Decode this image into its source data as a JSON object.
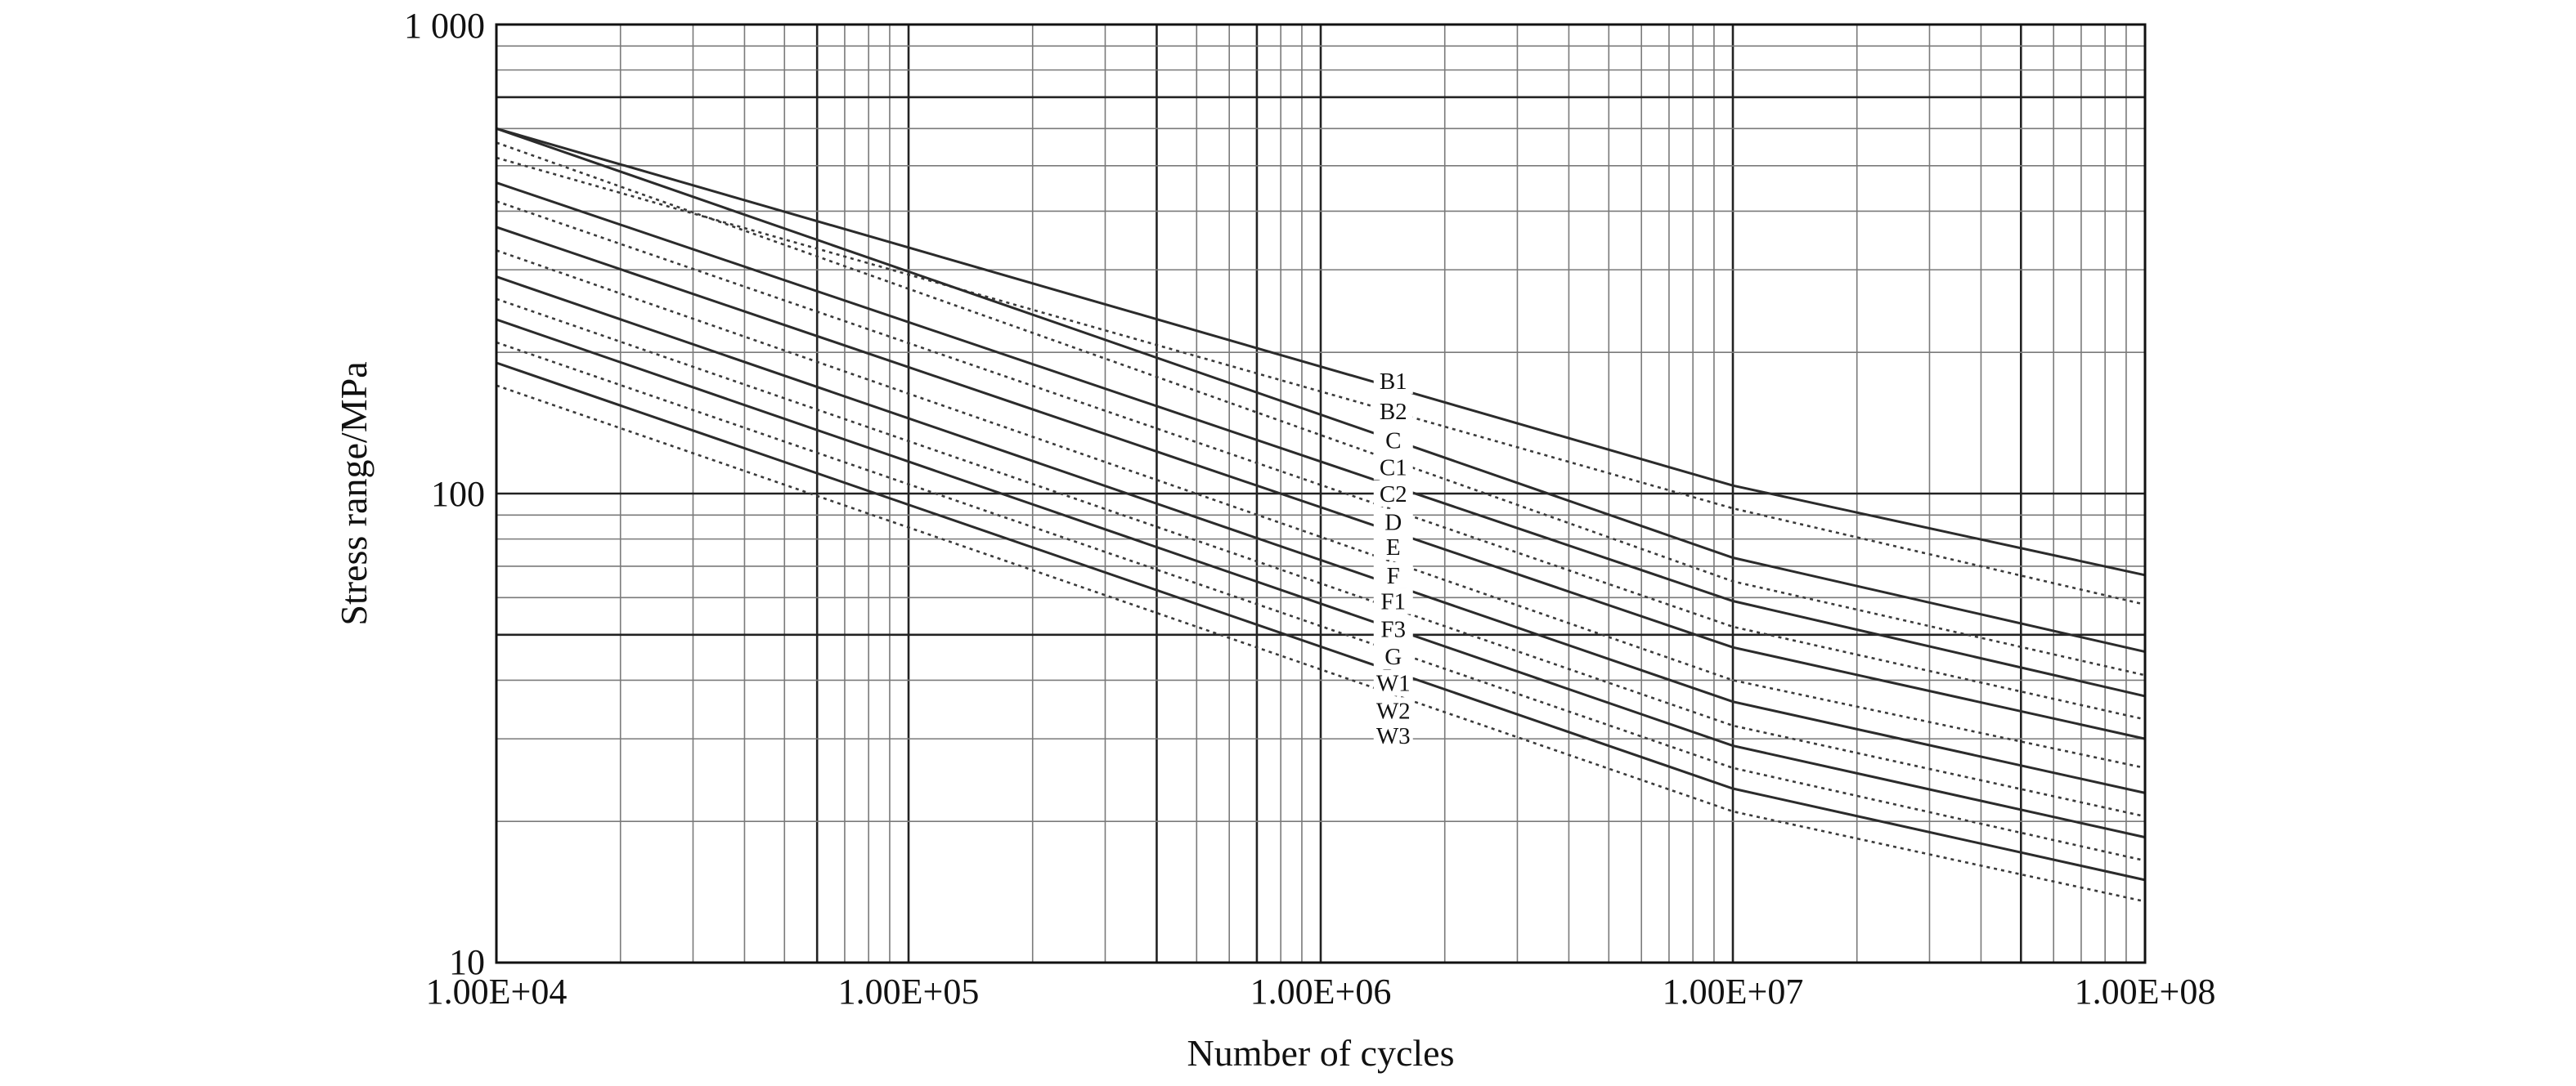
{
  "chart_data": {
    "type": "line",
    "title": "",
    "xlabel": "Number of cycles",
    "ylabel": "Stress range/MPa",
    "x_scale": "log",
    "y_scale": "log",
    "xlim": [
      10000,
      100000000
    ],
    "ylim": [
      10,
      1000
    ],
    "x_ticks": [
      10000,
      100000,
      1000000,
      10000000,
      100000000
    ],
    "x_tick_labels": [
      "1.00E+04",
      "1.00E+05",
      "1.00E+06",
      "1.00E+07",
      "1.00E+08"
    ],
    "y_ticks": [
      10,
      100,
      1000
    ],
    "y_tick_labels": [
      "10",
      "100",
      "1 000"
    ],
    "y_major_lines": [
      50,
      700
    ],
    "x_major_lines": [
      60000,
      400000,
      700000,
      50000000
    ],
    "grid": true,
    "legend": "none",
    "series": [
      {
        "name": "B1",
        "style": "solid",
        "x": [
          10000,
          10000000,
          100000000
        ],
        "y": [
          600,
          104,
          67
        ]
      },
      {
        "name": "B2",
        "style": "dotted",
        "x": [
          10000,
          10000000,
          100000000
        ],
        "y": [
          520,
          93,
          58
        ]
      },
      {
        "name": "C",
        "style": "solid",
        "x": [
          10000,
          10000000,
          100000000
        ],
        "y": [
          600,
          73,
          46
        ]
      },
      {
        "name": "C1",
        "style": "dotted",
        "x": [
          10000,
          10000000,
          100000000
        ],
        "y": [
          560,
          65,
          41
        ]
      },
      {
        "name": "C2",
        "style": "solid",
        "x": [
          10000,
          10000000,
          100000000
        ],
        "y": [
          460,
          59,
          37
        ]
      },
      {
        "name": "D",
        "style": "dotted",
        "x": [
          10000,
          10000000,
          100000000
        ],
        "y": [
          420,
          52,
          33
        ]
      },
      {
        "name": "E",
        "style": "solid",
        "x": [
          10000,
          10000000,
          100000000
        ],
        "y": [
          370,
          47,
          30
        ]
      },
      {
        "name": "F",
        "style": "dotted",
        "x": [
          10000,
          10000000,
          100000000
        ],
        "y": [
          330,
          40,
          26
        ]
      },
      {
        "name": "F1",
        "style": "solid",
        "x": [
          10000,
          10000000,
          100000000
        ],
        "y": [
          290,
          36,
          23
        ]
      },
      {
        "name": "F3",
        "style": "dotted",
        "x": [
          10000,
          10000000,
          100000000
        ],
        "y": [
          260,
          32,
          20.5
        ]
      },
      {
        "name": "G",
        "style": "solid",
        "x": [
          10000,
          10000000,
          100000000
        ],
        "y": [
          235,
          29,
          18.5
        ]
      },
      {
        "name": "W1",
        "style": "dotted",
        "x": [
          10000,
          10000000,
          100000000
        ],
        "y": [
          210,
          26,
          16.5
        ]
      },
      {
        "name": "W2",
        "style": "solid",
        "x": [
          10000,
          10000000,
          100000000
        ],
        "y": [
          190,
          23.5,
          15
        ]
      },
      {
        "name": "W3",
        "style": "dotted",
        "x": [
          10000,
          10000000,
          100000000
        ],
        "y": [
          170,
          21,
          13.5
        ]
      }
    ],
    "curve_labels": [
      {
        "text": "B1",
        "y": 174
      },
      {
        "text": "B2",
        "y": 150
      },
      {
        "text": "C",
        "y": 130
      },
      {
        "text": "C1",
        "y": 114
      },
      {
        "text": "C2",
        "y": 100
      },
      {
        "text": "D",
        "y": 87
      },
      {
        "text": "E",
        "y": 77
      },
      {
        "text": "F",
        "y": 67
      },
      {
        "text": "F1",
        "y": 59
      },
      {
        "text": "F3",
        "y": 51.5
      },
      {
        "text": "G",
        "y": 45
      },
      {
        "text": "W1",
        "y": 39.5
      },
      {
        "text": "W2",
        "y": 34.5
      },
      {
        "text": "W3",
        "y": 30.5
      }
    ]
  }
}
